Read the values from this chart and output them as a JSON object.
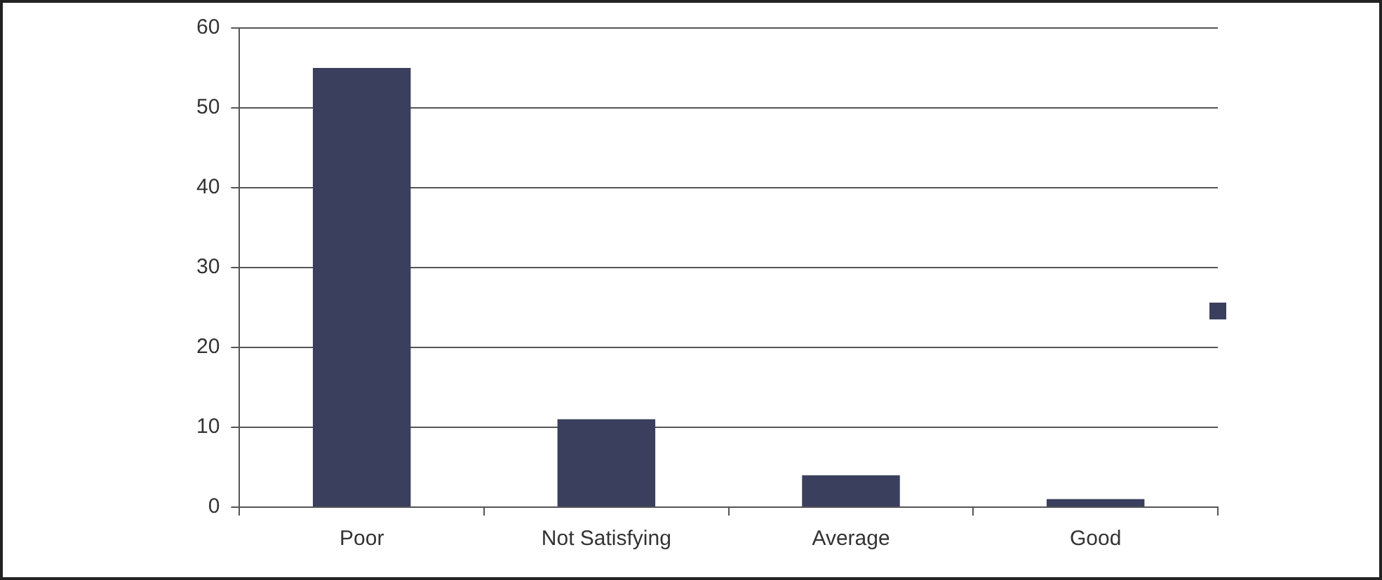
{
  "chart_data": {
    "type": "bar",
    "categories": [
      "Poor",
      "Not Satisfying",
      "Average",
      "Good"
    ],
    "series": [
      {
        "color": "#3b3f5e",
        "values": [
          55,
          11,
          4,
          1
        ]
      }
    ],
    "ylim": [
      0,
      60
    ],
    "yticks": [
      0,
      10,
      20,
      30,
      40,
      50,
      60
    ],
    "grid": "y"
  }
}
